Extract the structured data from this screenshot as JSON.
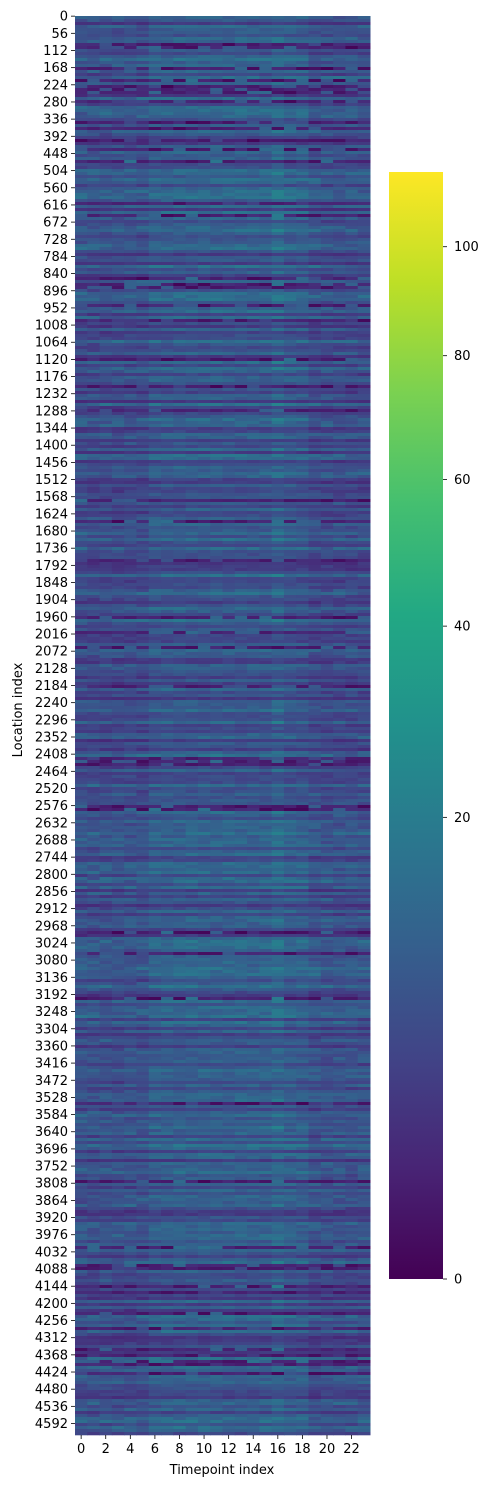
{
  "chart_data": {
    "type": "heatmap",
    "title": "",
    "xlabel": "Timepoint index",
    "ylabel": "Location index",
    "x_tick_labels": [
      "0",
      "2",
      "4",
      "6",
      "8",
      "10",
      "12",
      "14",
      "16",
      "18",
      "20",
      "22"
    ],
    "y_tick_labels": [
      "0",
      "56",
      "112",
      "168",
      "224",
      "280",
      "336",
      "392",
      "448",
      "504",
      "560",
      "616",
      "672",
      "728",
      "784",
      "840",
      "896",
      "952",
      "1008",
      "1064",
      "1120",
      "1176",
      "1232",
      "1288",
      "1344",
      "1400",
      "1456",
      "1512",
      "1568",
      "1624",
      "1680",
      "1736",
      "1792",
      "1848",
      "1904",
      "1960",
      "2016",
      "2072",
      "2128",
      "2184",
      "2240",
      "2296",
      "2352",
      "2408",
      "2464",
      "2520",
      "2576",
      "2632",
      "2688",
      "2744",
      "2800",
      "2856",
      "2912",
      "2968",
      "3024",
      "3080",
      "3136",
      "3192",
      "3248",
      "3304",
      "3360",
      "3416",
      "3472",
      "3528",
      "3584",
      "3640",
      "3696",
      "3752",
      "3808",
      "3864",
      "3920",
      "3976",
      "4032",
      "4088",
      "4144",
      "4200",
      "4256",
      "4312",
      "4368",
      "4424",
      "4480",
      "4536",
      "4592"
    ],
    "n_timepoints": 24,
    "n_locations": 4630,
    "value_range": [
      0,
      115
    ],
    "colorbar": {
      "colormap": "viridis",
      "scale": "sqrt",
      "ticks": [
        "0",
        "20",
        "40",
        "60",
        "80",
        "100"
      ]
    },
    "typical_value_range": [
      3,
      20
    ]
  }
}
